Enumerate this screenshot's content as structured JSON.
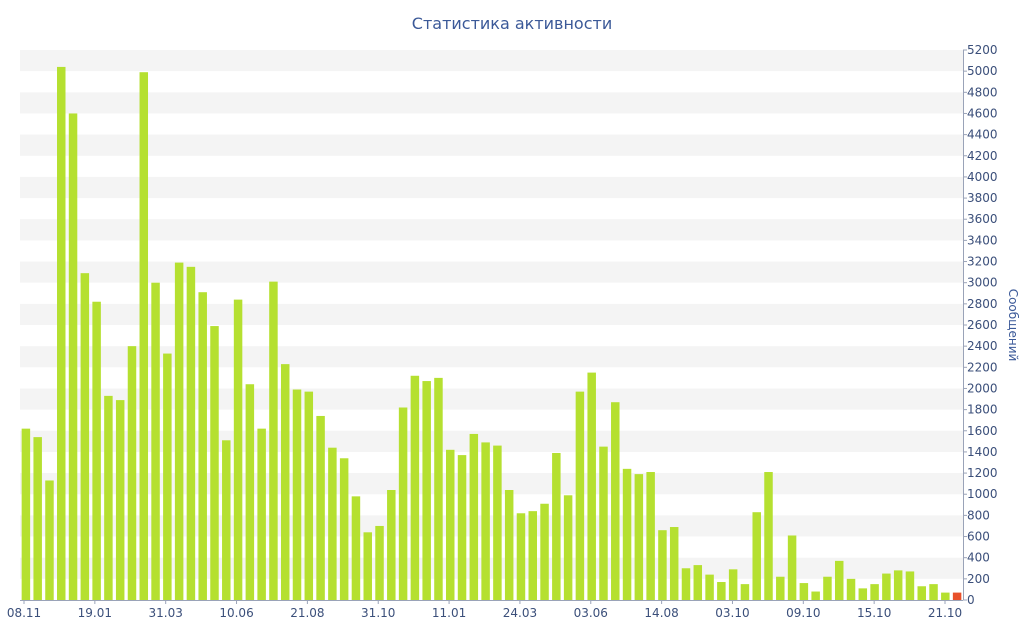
{
  "chart_data": {
    "type": "bar",
    "title": "Статистика активности",
    "xlabel": "",
    "ylabel": "Сообщений",
    "ylim": [
      0,
      5200
    ],
    "y_ticks": [
      0,
      200,
      400,
      600,
      800,
      1000,
      1200,
      1400,
      1600,
      1800,
      2000,
      2200,
      2400,
      2600,
      2800,
      3000,
      3200,
      3400,
      3600,
      3800,
      4000,
      4200,
      4400,
      4600,
      4800,
      5000,
      5200
    ],
    "x_tick_labels": [
      "08.11",
      "19.01",
      "31.03",
      "10.06",
      "21.08",
      "31.10",
      "11.01",
      "24.03",
      "03.06",
      "14.08",
      "03.10",
      "09.10",
      "15.10",
      "21.10"
    ],
    "grid": "horizontal bands",
    "bar_color": "#b5e030",
    "highlight_color": "#e8502a",
    "values": [
      1620,
      1540,
      1130,
      5040,
      4600,
      3090,
      2820,
      1930,
      1890,
      2400,
      4990,
      3000,
      2330,
      3190,
      3150,
      2910,
      2590,
      1510,
      2840,
      2040,
      1620,
      3010,
      2230,
      1990,
      1970,
      1740,
      1440,
      1340,
      980,
      640,
      700,
      1040,
      1820,
      2120,
      2070,
      2100,
      1420,
      1370,
      1570,
      1490,
      1460,
      1040,
      820,
      840,
      910,
      1390,
      990,
      1970,
      2150,
      1450,
      1870,
      1240,
      1190,
      1210,
      660,
      690,
      300,
      330,
      240,
      170,
      290,
      150,
      830,
      1210,
      220,
      610,
      160,
      80,
      220,
      370,
      200,
      110,
      150,
      250,
      280,
      270,
      130,
      150,
      70,
      70
    ],
    "highlight_index": 79
  }
}
